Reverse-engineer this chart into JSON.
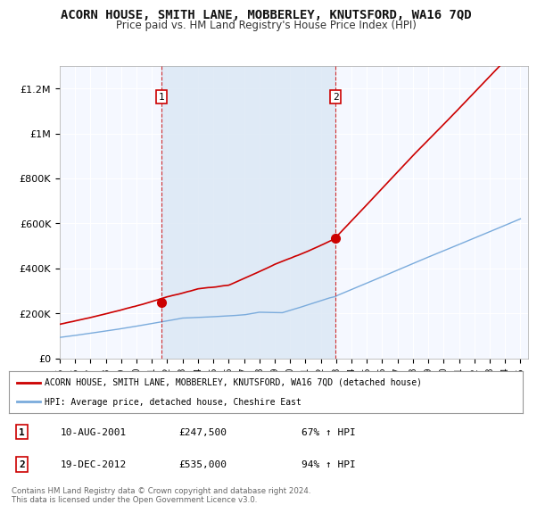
{
  "title": "ACORN HOUSE, SMITH LANE, MOBBERLEY, KNUTSFORD, WA16 7QD",
  "subtitle": "Price paid vs. HM Land Registry's House Price Index (HPI)",
  "title_fontsize": 10,
  "subtitle_fontsize": 8.5,
  "ylim": [
    0,
    1300000
  ],
  "xlim_start": 1995.0,
  "xlim_end": 2025.5,
  "yticks": [
    0,
    200000,
    400000,
    600000,
    800000,
    1000000,
    1200000
  ],
  "ytick_labels": [
    "£0",
    "£200K",
    "£400K",
    "£600K",
    "£800K",
    "£1M",
    "£1.2M"
  ],
  "sale1_x": 2001.608,
  "sale1_y": 247500,
  "sale2_x": 2012.962,
  "sale2_y": 535000,
  "house_color": "#cc0000",
  "hpi_color": "#7aabdc",
  "shade_color": "#dce8f5",
  "legend_house": "ACORN HOUSE, SMITH LANE, MOBBERLEY, KNUTSFORD, WA16 7QD (detached house)",
  "legend_hpi": "HPI: Average price, detached house, Cheshire East",
  "annotation1_date": "10-AUG-2001",
  "annotation1_price": "£247,500",
  "annotation1_hpi": "67% ↑ HPI",
  "annotation2_date": "19-DEC-2012",
  "annotation2_price": "£535,000",
  "annotation2_hpi": "94% ↑ HPI",
  "footer": "Contains HM Land Registry data © Crown copyright and database right 2024.\nThis data is licensed under the Open Government Licence v3.0.",
  "background_color": "#ffffff",
  "plot_bg_color": "#f5f8ff",
  "grid_color": "#ffffff"
}
